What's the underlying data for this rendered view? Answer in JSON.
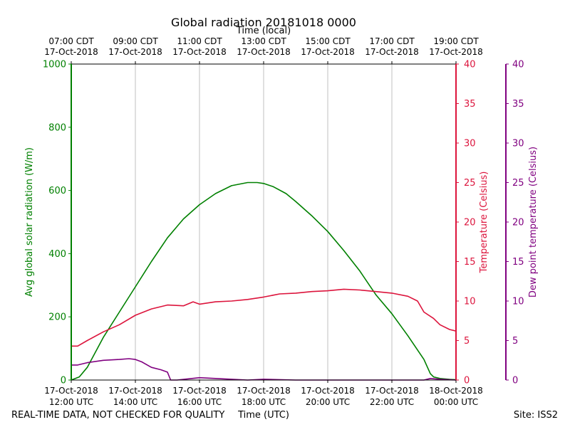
{
  "chart_data": {
    "type": "line",
    "title": "Global radiation 20181018 0000",
    "top_xlabel": "Time (local)",
    "xlabel": "Time (UTC)",
    "footer_left": "REAL-TIME DATA, NOT CHECKED FOR QUALITY",
    "footer_right": "Site: ISS2",
    "x_range_hours_utc": [
      12,
      24
    ],
    "bottom_ticks": [
      {
        "hour": 12,
        "line1": "17-Oct-2018",
        "line2": "12:00 UTC"
      },
      {
        "hour": 14,
        "line1": "17-Oct-2018",
        "line2": "14:00 UTC"
      },
      {
        "hour": 16,
        "line1": "17-Oct-2018",
        "line2": "16:00 UTC"
      },
      {
        "hour": 18,
        "line1": "17-Oct-2018",
        "line2": "18:00 UTC"
      },
      {
        "hour": 20,
        "line1": "17-Oct-2018",
        "line2": "20:00 UTC"
      },
      {
        "hour": 22,
        "line1": "17-Oct-2018",
        "line2": "22:00 UTC"
      },
      {
        "hour": 24,
        "line1": "18-Oct-2018",
        "line2": "00:00 UTC"
      }
    ],
    "top_ticks": [
      {
        "hour": 12,
        "line1": "07:00 CDT",
        "line2": "17-Oct-2018"
      },
      {
        "hour": 14,
        "line1": "09:00 CDT",
        "line2": "17-Oct-2018"
      },
      {
        "hour": 16,
        "line1": "11:00 CDT",
        "line2": "17-Oct-2018"
      },
      {
        "hour": 18,
        "line1": "13:00 CDT",
        "line2": "17-Oct-2018"
      },
      {
        "hour": 20,
        "line1": "15:00 CDT",
        "line2": "17-Oct-2018"
      },
      {
        "hour": 22,
        "line1": "17:00 CDT",
        "line2": "17-Oct-2018"
      },
      {
        "hour": 24,
        "line1": "19:00 CDT",
        "line2": "17-Oct-2018"
      }
    ],
    "gridlines_hours": [
      14,
      16,
      18,
      20,
      22
    ],
    "axes": {
      "left": {
        "label": "Avg global solar radiation (W/m)",
        "ylim": [
          0,
          1000
        ],
        "ticks": [
          0,
          200,
          400,
          600,
          800,
          1000
        ],
        "color": "#008000"
      },
      "right": {
        "label": "Temperature (Celsius)",
        "ylim": [
          0,
          40
        ],
        "ticks": [
          0,
          5,
          10,
          15,
          20,
          25,
          30,
          35,
          40
        ],
        "color": "#dc143c"
      },
      "far_right": {
        "label": "Dew point temperature (Celsius)",
        "ylim": [
          0,
          40
        ],
        "ticks": [
          0,
          5,
          10,
          15,
          20,
          25,
          30,
          35,
          40
        ],
        "color": "#800080"
      }
    },
    "series": [
      {
        "name": "Avg global solar radiation",
        "axis": "left",
        "color": "#008000",
        "x": [
          12.0,
          12.25,
          12.5,
          13.0,
          13.5,
          14.0,
          14.5,
          15.0,
          15.5,
          16.0,
          16.5,
          17.0,
          17.5,
          17.8,
          18.0,
          18.3,
          18.7,
          19.0,
          19.5,
          20.0,
          20.5,
          21.0,
          21.3,
          21.5,
          22.0,
          22.5,
          23.0,
          23.2,
          23.3,
          23.5,
          23.8,
          24.0
        ],
        "values": [
          0,
          10,
          40,
          135,
          215,
          295,
          375,
          450,
          510,
          555,
          590,
          615,
          625,
          625,
          622,
          612,
          590,
          565,
          520,
          470,
          410,
          345,
          300,
          270,
          210,
          140,
          65,
          20,
          10,
          5,
          2,
          1
        ]
      },
      {
        "name": "Temperature",
        "axis": "right",
        "color": "#dc143c",
        "x": [
          12.0,
          12.2,
          12.5,
          13.0,
          13.5,
          14.0,
          14.5,
          15.0,
          15.5,
          15.8,
          16.0,
          16.5,
          17.0,
          17.5,
          18.0,
          18.5,
          19.0,
          19.5,
          20.0,
          20.5,
          21.0,
          21.5,
          22.0,
          22.5,
          22.8,
          23.0,
          23.3,
          23.5,
          23.8,
          24.0
        ],
        "values": [
          4.3,
          4.3,
          5.0,
          6.1,
          7.0,
          8.2,
          9.0,
          9.5,
          9.4,
          9.9,
          9.6,
          9.9,
          10.0,
          10.2,
          10.5,
          10.9,
          11.0,
          11.2,
          11.3,
          11.5,
          11.4,
          11.2,
          11.0,
          10.6,
          10.0,
          8.6,
          7.8,
          7.0,
          6.4,
          6.2
        ]
      },
      {
        "name": "Dew point temperature",
        "axis": "far_right",
        "color": "#800080",
        "x": [
          12.0,
          12.2,
          12.5,
          13.0,
          13.5,
          13.8,
          14.0,
          14.2,
          14.5,
          14.8,
          15.0,
          15.1,
          15.3,
          16.0,
          16.5,
          17.0,
          17.5,
          18.0,
          19.0,
          20.0,
          21.0,
          22.0,
          23.0,
          23.2,
          23.5,
          24.0
        ],
        "values": [
          1.9,
          1.9,
          2.2,
          2.5,
          2.6,
          2.7,
          2.6,
          2.3,
          1.6,
          1.3,
          1.0,
          0.0,
          0.0,
          0.3,
          0.2,
          0.1,
          0.0,
          0.1,
          0.0,
          0.0,
          0.0,
          0.0,
          0.0,
          0.2,
          0.1,
          0.0
        ]
      }
    ]
  }
}
